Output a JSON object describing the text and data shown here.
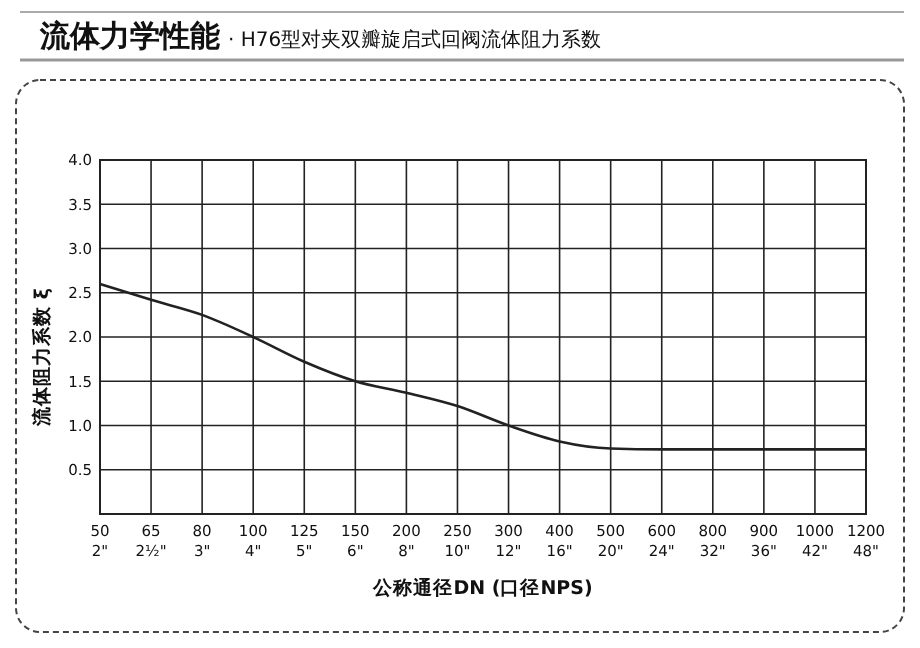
{
  "chart_data": {
    "type": "line",
    "title": "流体力学性能",
    "subtitle": "· H76型对夹双瓣旋启式回阀流体阻力系数",
    "xlabel": "公称通径DN  (口径NPS)",
    "ylabel": "流体阻力系数 ξ",
    "categories": [
      "50\n2\"",
      "65\n2½\"",
      "80\n3\"",
      "100\n4\"",
      "125\n5\"",
      "150\n6\"",
      "200\n8\"",
      "250\n10\"",
      "300\n12\"",
      "400\n16\"",
      "500\n20\"",
      "600\n24\"",
      "800\n32\"",
      "900\n36\"",
      "1000\n42\"",
      "1200\n48\""
    ],
    "series": [
      {
        "color": "#222222",
        "values": [
          2.6,
          2.42,
          2.25,
          2.0,
          1.72,
          1.5,
          1.37,
          1.22,
          1.0,
          0.82,
          0.74,
          0.73,
          0.73,
          0.73,
          0.73,
          0.73
        ]
      }
    ],
    "ylim": [
      0,
      4
    ],
    "yticks": [
      {
        "value": 0,
        "label": null
      },
      {
        "value": 0.5,
        "label": "0.5"
      },
      {
        "value": 1,
        "label": "1.0"
      },
      {
        "value": 1.5,
        "label": "1.5"
      },
      {
        "value": 2,
        "label": "2.0"
      },
      {
        "value": 2.5,
        "label": "2.5"
      },
      {
        "value": 3,
        "label": "3.0"
      },
      {
        "value": 3.5,
        "label": "3.5"
      },
      {
        "value": 4,
        "label": "4.0"
      }
    ],
    "grid": true,
    "marker": "none",
    "line_style": "solid"
  }
}
